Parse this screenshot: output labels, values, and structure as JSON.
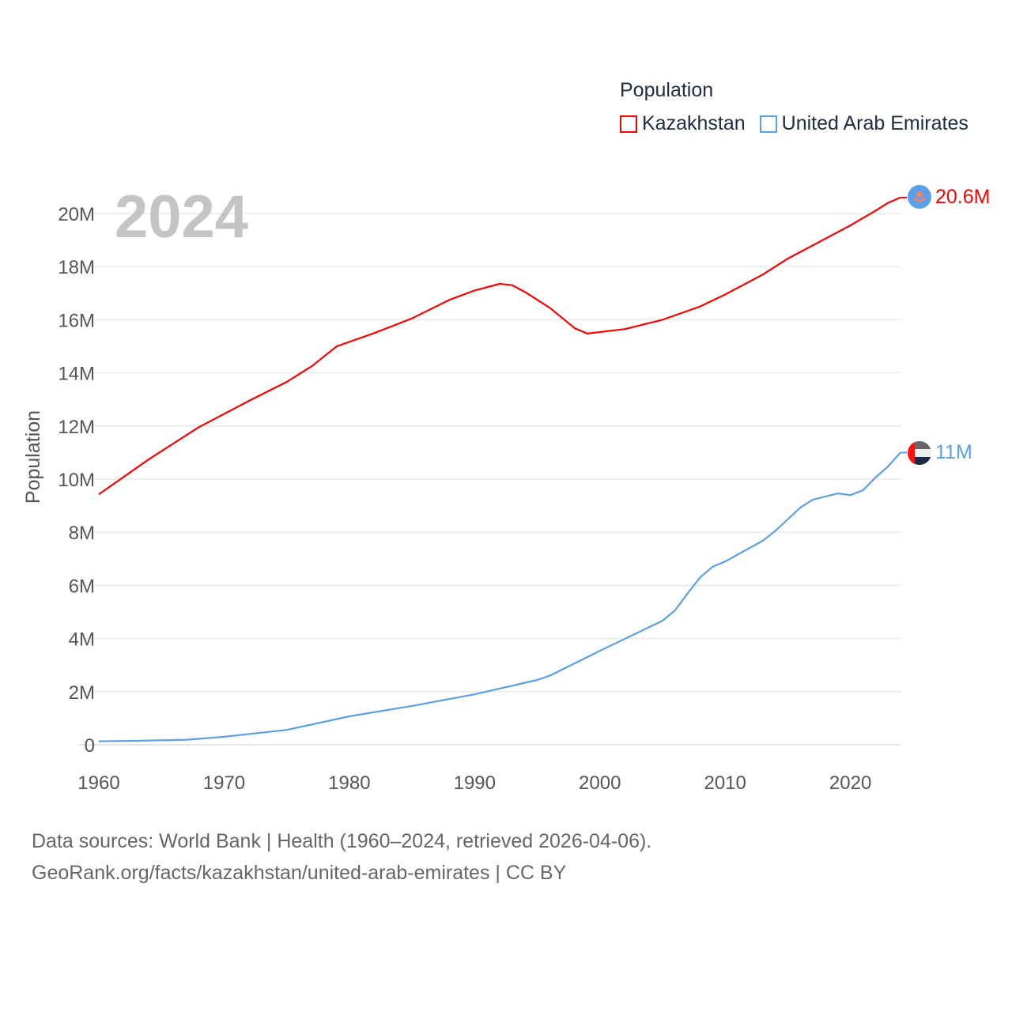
{
  "chart_data": {
    "type": "line",
    "title": "2024",
    "ylabel": "Population",
    "xlabel": "",
    "xlim": [
      1960,
      2024
    ],
    "ylim": [
      0,
      20000000
    ],
    "grid": true,
    "legend_title": "Population",
    "legend_position": "top-right",
    "x_ticks": [
      "1960",
      "1970",
      "1980",
      "1990",
      "2000",
      "2010",
      "2020"
    ],
    "y_ticks": [
      "0",
      "2M",
      "4M",
      "6M",
      "8M",
      "10M",
      "12M",
      "14M",
      "16M",
      "18M",
      "20M"
    ],
    "series": [
      {
        "name": "Kazakhstan",
        "color": "#ff0000",
        "end_label": "20.6M",
        "x": [
          1960,
          1964,
          1968,
          1972,
          1975,
          1977,
          1979,
          1982,
          1985,
          1988,
          1990,
          1992,
          1993,
          1994,
          1996,
          1998,
          1999,
          2002,
          2005,
          2008,
          2010,
          2013,
          2015,
          2018,
          2020,
          2022,
          2023,
          2024
        ],
        "y": [
          9.43,
          10.75,
          11.96,
          12.95,
          13.66,
          14.25,
          15.0,
          15.5,
          16.05,
          16.75,
          17.1,
          17.35,
          17.3,
          17.05,
          16.45,
          15.68,
          15.48,
          15.65,
          16.0,
          16.5,
          16.95,
          17.7,
          18.3,
          19.05,
          19.55,
          20.1,
          20.4,
          20.6
        ]
      },
      {
        "name": "United Arab Emirates",
        "color": "#5aa0e8",
        "end_label": "11M",
        "x": [
          1960,
          1963,
          1967,
          1970,
          1975,
          1980,
          1985,
          1990,
          1995,
          1996,
          2000,
          2005,
          2006,
          2007,
          2008,
          2009,
          2010,
          2013,
          2014,
          2016,
          2017,
          2019,
          2020,
          2021,
          2022,
          2023,
          2024
        ],
        "y": [
          0.13,
          0.15,
          0.19,
          0.3,
          0.56,
          1.07,
          1.46,
          1.9,
          2.44,
          2.6,
          3.54,
          4.67,
          5.06,
          5.7,
          6.3,
          6.7,
          6.9,
          7.68,
          8.05,
          8.93,
          9.23,
          9.46,
          9.4,
          9.58,
          10.06,
          10.48,
          11.0
        ]
      }
    ]
  },
  "footer": {
    "line1": "Data sources: World Bank | Health (1960–2024, retrieved 2026-04-06).",
    "line2": "GeoRank.org/facts/kazakhstan/united-arab-emirates | CC BY"
  }
}
